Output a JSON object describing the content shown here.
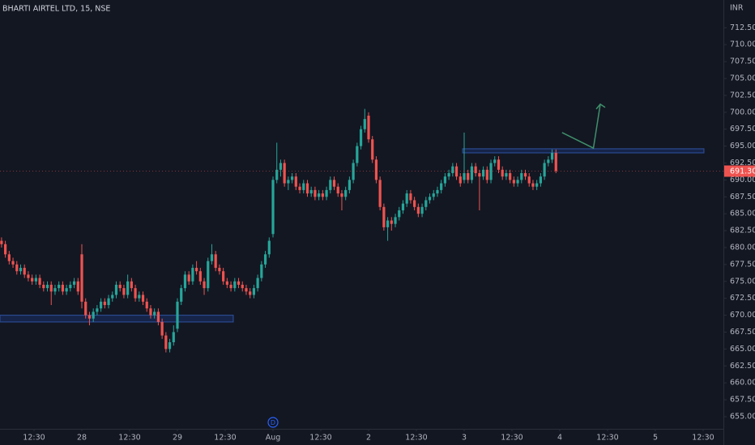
{
  "chart_data": {
    "type": "candlestick",
    "title": "BHARTI AIRTEL LTD, 15, NSE",
    "y_axis_label": "INR",
    "up_color": "#26a69a",
    "down_color": "#ef5350",
    "grid": false,
    "xlim": [
      -0.4,
      188.8
    ],
    "ylim": [
      653.2,
      716.6
    ],
    "xticks": [
      {
        "value": 8.5,
        "label": "12:30"
      },
      {
        "value": 21,
        "label": "28"
      },
      {
        "value": 33.5,
        "label": "12:30"
      },
      {
        "value": 46,
        "label": "29"
      },
      {
        "value": 58.5,
        "label": "12:30"
      },
      {
        "value": 71,
        "label": "Aug"
      },
      {
        "value": 83.5,
        "label": "12:30"
      },
      {
        "value": 96,
        "label": "2"
      },
      {
        "value": 108.5,
        "label": "12:30"
      },
      {
        "value": 121,
        "label": "3"
      },
      {
        "value": 133.5,
        "label": "12:30"
      },
      {
        "value": 146,
        "label": "4"
      },
      {
        "value": 158.5,
        "label": "12:30"
      },
      {
        "value": 171,
        "label": "5"
      },
      {
        "value": 183.5,
        "label": "12:30"
      }
    ],
    "yticks": [
      {
        "value": 655,
        "label": "655.00"
      },
      {
        "value": 657.5,
        "label": "657.50"
      },
      {
        "value": 660,
        "label": "660.00"
      },
      {
        "value": 662.5,
        "label": "662.50"
      },
      {
        "value": 665,
        "label": "665.00"
      },
      {
        "value": 667.5,
        "label": "667.50"
      },
      {
        "value": 670,
        "label": "670.00"
      },
      {
        "value": 672.5,
        "label": "672.50"
      },
      {
        "value": 675,
        "label": "675.00"
      },
      {
        "value": 677.5,
        "label": "677.50"
      },
      {
        "value": 680,
        "label": "680.00"
      },
      {
        "value": 682.5,
        "label": "682.50"
      },
      {
        "value": 685,
        "label": "685.00"
      },
      {
        "value": 687.5,
        "label": "687.50"
      },
      {
        "value": 690,
        "label": "690.00"
      },
      {
        "value": 692.5,
        "label": "692.50"
      },
      {
        "value": 695,
        "label": "695.00"
      },
      {
        "value": 697.5,
        "label": "697.50"
      },
      {
        "value": 700,
        "label": "700.00"
      },
      {
        "value": 702.5,
        "label": "702.50"
      },
      {
        "value": 705,
        "label": "705.00"
      },
      {
        "value": 707.5,
        "label": "707.50"
      },
      {
        "value": 710,
        "label": "710.00"
      },
      {
        "value": 712.5,
        "label": "712.50"
      }
    ],
    "last_price": {
      "value": 691.3,
      "label": "691.30"
    },
    "event_marker": {
      "label": "D",
      "x": 71
    },
    "zones": [
      {
        "x": [
          -0.4,
          60.6
        ],
        "y": [
          669.0,
          670.0
        ]
      },
      {
        "x": [
          120.6,
          183.7
        ],
        "y": [
          694.0,
          694.6
        ]
      }
    ],
    "arrow": {
      "x": [
        146.6,
        154.8,
        156.6
      ],
      "y": [
        697,
        694.7,
        701.2
      ],
      "color": "#3f8f6b"
    },
    "ohlc": [
      [
        681,
        681.5,
        680,
        680.5
      ],
      [
        680.5,
        681,
        678.5,
        679
      ],
      [
        679,
        679.5,
        677.5,
        678
      ],
      [
        678,
        678.5,
        677,
        677.5
      ],
      [
        677.5,
        678,
        676,
        676.5
      ],
      [
        676.5,
        677.5,
        676,
        677
      ],
      [
        677,
        677.5,
        675.5,
        676
      ],
      [
        676,
        676.5,
        675,
        675.5
      ],
      [
        675.5,
        676,
        674.5,
        675
      ],
      [
        675,
        676,
        674.5,
        675.5
      ],
      [
        675.5,
        676,
        674,
        674.5
      ],
      [
        674.5,
        675,
        673.5,
        674
      ],
      [
        674,
        675,
        673.5,
        674.5
      ],
      [
        674.5,
        675,
        671.5,
        673.5
      ],
      [
        673.5,
        674.5,
        673,
        674
      ],
      [
        674,
        675,
        673.5,
        674.5
      ],
      [
        674.5,
        675,
        673,
        673.5
      ],
      [
        673.5,
        674.5,
        673,
        674
      ],
      [
        674,
        675,
        673.5,
        674.5
      ],
      [
        674.5,
        675.5,
        674,
        675
      ],
      [
        675,
        675.5,
        673,
        673.5
      ],
      [
        679,
        680.5,
        671,
        672
      ],
      [
        672,
        672.5,
        669.5,
        670
      ],
      [
        670,
        670.5,
        668.5,
        669.5
      ],
      [
        669.5,
        671,
        669,
        670.5
      ],
      [
        670.5,
        671.5,
        670,
        671
      ],
      [
        671,
        672.5,
        670.5,
        672
      ],
      [
        672,
        672.5,
        671,
        671.5
      ],
      [
        671.5,
        673,
        671,
        672.5
      ],
      [
        672.5,
        673.5,
        672,
        673
      ],
      [
        673,
        675,
        672.5,
        674.5
      ],
      [
        674.5,
        675,
        673.5,
        674
      ],
      [
        674,
        674.5,
        672.5,
        673
      ],
      [
        673,
        676,
        672.5,
        675
      ],
      [
        675,
        675.5,
        673.5,
        674
      ],
      [
        674,
        674.5,
        672,
        672.5
      ],
      [
        672.5,
        673.5,
        672,
        673
      ],
      [
        673,
        673.5,
        671.5,
        672
      ],
      [
        672,
        672.5,
        670.5,
        671
      ],
      [
        671,
        671.5,
        669.5,
        670
      ],
      [
        670,
        671,
        669.5,
        670.5
      ],
      [
        670.5,
        671,
        668.5,
        669
      ],
      [
        669,
        669.5,
        666.5,
        667
      ],
      [
        667,
        667.5,
        664.5,
        665
      ],
      [
        665,
        666.5,
        664.5,
        666
      ],
      [
        666,
        668.5,
        665.5,
        667.5
      ],
      [
        668,
        672.5,
        667.5,
        672
      ],
      [
        672,
        674.5,
        671.5,
        674
      ],
      [
        674,
        676.5,
        673.5,
        676
      ],
      [
        676,
        676.5,
        674.5,
        675
      ],
      [
        675,
        677.5,
        674.5,
        677
      ],
      [
        677,
        678,
        676,
        676.5
      ],
      [
        676.5,
        677,
        674.5,
        675
      ],
      [
        675,
        675.5,
        673,
        674
      ],
      [
        674,
        678.5,
        673.5,
        678
      ],
      [
        678,
        680.5,
        677.5,
        679
      ],
      [
        679,
        679.5,
        676.5,
        677
      ],
      [
        677,
        677.5,
        676,
        676.5
      ],
      [
        676.5,
        677,
        674.5,
        675
      ],
      [
        675,
        675.5,
        674,
        674.5
      ],
      [
        674.5,
        675,
        673.5,
        674
      ],
      [
        674,
        675.5,
        673.5,
        675
      ],
      [
        675,
        675.5,
        674,
        674.5
      ],
      [
        674.5,
        675,
        673.5,
        674
      ],
      [
        674,
        674.5,
        673,
        673.5
      ],
      [
        673.5,
        674,
        672.5,
        673
      ],
      [
        673,
        674.5,
        672.5,
        674
      ],
      [
        674,
        676,
        673.5,
        675.5
      ],
      [
        675.5,
        678,
        675,
        677.5
      ],
      [
        677.5,
        679.5,
        677,
        679
      ],
      [
        679,
        681.5,
        678.5,
        681
      ],
      [
        682,
        690.5,
        681.5,
        690
      ],
      [
        690,
        695.5,
        689.5,
        691.5
      ],
      [
        691.5,
        693,
        690.5,
        692.5
      ],
      [
        692.5,
        693,
        689,
        689.5
      ],
      [
        689.5,
        690.5,
        688.5,
        690
      ],
      [
        690,
        691,
        689.5,
        690.5
      ],
      [
        690.5,
        691,
        688.5,
        689
      ],
      [
        689,
        689.5,
        688,
        688.5
      ],
      [
        688.5,
        690,
        688,
        689.5
      ],
      [
        689.5,
        690,
        687.5,
        688
      ],
      [
        688,
        689,
        687.5,
        688.5
      ],
      [
        688.5,
        689,
        687,
        687.5
      ],
      [
        687.5,
        688.5,
        687,
        688
      ],
      [
        688,
        688.5,
        687,
        687.5
      ],
      [
        687.5,
        689,
        687,
        688.5
      ],
      [
        688.5,
        690.5,
        688,
        690
      ],
      [
        690,
        690.5,
        688.5,
        689
      ],
      [
        689,
        689.5,
        687.5,
        688
      ],
      [
        688,
        688.5,
        685.5,
        687.5
      ],
      [
        687.5,
        689,
        687,
        688.5
      ],
      [
        688.5,
        690.5,
        688,
        690
      ],
      [
        690,
        693,
        689.5,
        692.5
      ],
      [
        692.5,
        695.5,
        692,
        695
      ],
      [
        695,
        698,
        694.5,
        697.5
      ],
      [
        697.5,
        700.5,
        697,
        699
      ],
      [
        699.5,
        700,
        695.5,
        696
      ],
      [
        696,
        696.5,
        692.5,
        693
      ],
      [
        693,
        693.5,
        689.5,
        690
      ],
      [
        690,
        690.5,
        685.5,
        686
      ],
      [
        686,
        686.5,
        682.5,
        683
      ],
      [
        683,
        684.5,
        681,
        684
      ],
      [
        684,
        684.5,
        682.5,
        683.5
      ],
      [
        683.5,
        685,
        683,
        684.5
      ],
      [
        684.5,
        686,
        684,
        685.5
      ],
      [
        685.5,
        687,
        685,
        686.5
      ],
      [
        686.5,
        688.5,
        686,
        688
      ],
      [
        688,
        688.5,
        686.5,
        687
      ],
      [
        687,
        687.5,
        685.5,
        686
      ],
      [
        686,
        686.5,
        684.5,
        685
      ],
      [
        685,
        686.5,
        684.5,
        686
      ],
      [
        686,
        687.5,
        685.5,
        687
      ],
      [
        687,
        688,
        686.5,
        687.5
      ],
      [
        687.5,
        688.5,
        687,
        688
      ],
      [
        688,
        689,
        687.5,
        688.5
      ],
      [
        688.5,
        690,
        688,
        689.5
      ],
      [
        689.5,
        691,
        689,
        690.5
      ],
      [
        690.5,
        691.5,
        690,
        691
      ],
      [
        691,
        692.5,
        690.5,
        692
      ],
      [
        692,
        692.5,
        690,
        690.5
      ],
      [
        690.5,
        691,
        689,
        689.5
      ],
      [
        690,
        697,
        689.5,
        691
      ],
      [
        691,
        691.5,
        689.5,
        690
      ],
      [
        690,
        692.5,
        689.5,
        692
      ],
      [
        692,
        692.5,
        690.5,
        691
      ],
      [
        691,
        691.5,
        685.5,
        690.5
      ],
      [
        690.5,
        692,
        690,
        691.5
      ],
      [
        691.5,
        692,
        689.5,
        690
      ],
      [
        690,
        693,
        689.5,
        692.5
      ],
      [
        692.5,
        693.5,
        692,
        693
      ],
      [
        693,
        693.5,
        691,
        691.5
      ],
      [
        691.5,
        692,
        690,
        690.5
      ],
      [
        690.5,
        691.5,
        690,
        691
      ],
      [
        691,
        691.5,
        689.5,
        690
      ],
      [
        690,
        690.5,
        689,
        689.5
      ],
      [
        689.5,
        690.5,
        689,
        690
      ],
      [
        690,
        691.5,
        689.5,
        691
      ],
      [
        691,
        691.5,
        690,
        690.5
      ],
      [
        690.5,
        691,
        689,
        689.5
      ],
      [
        689.5,
        690,
        688.5,
        689
      ],
      [
        689,
        690,
        688.5,
        689.5
      ],
      [
        689.5,
        691,
        689,
        690.5
      ],
      [
        690.5,
        693,
        690,
        692.5
      ],
      [
        692.5,
        693.5,
        692,
        693
      ],
      [
        693,
        694.5,
        692.5,
        694
      ],
      [
        694,
        694.5,
        691,
        691.3
      ]
    ]
  }
}
